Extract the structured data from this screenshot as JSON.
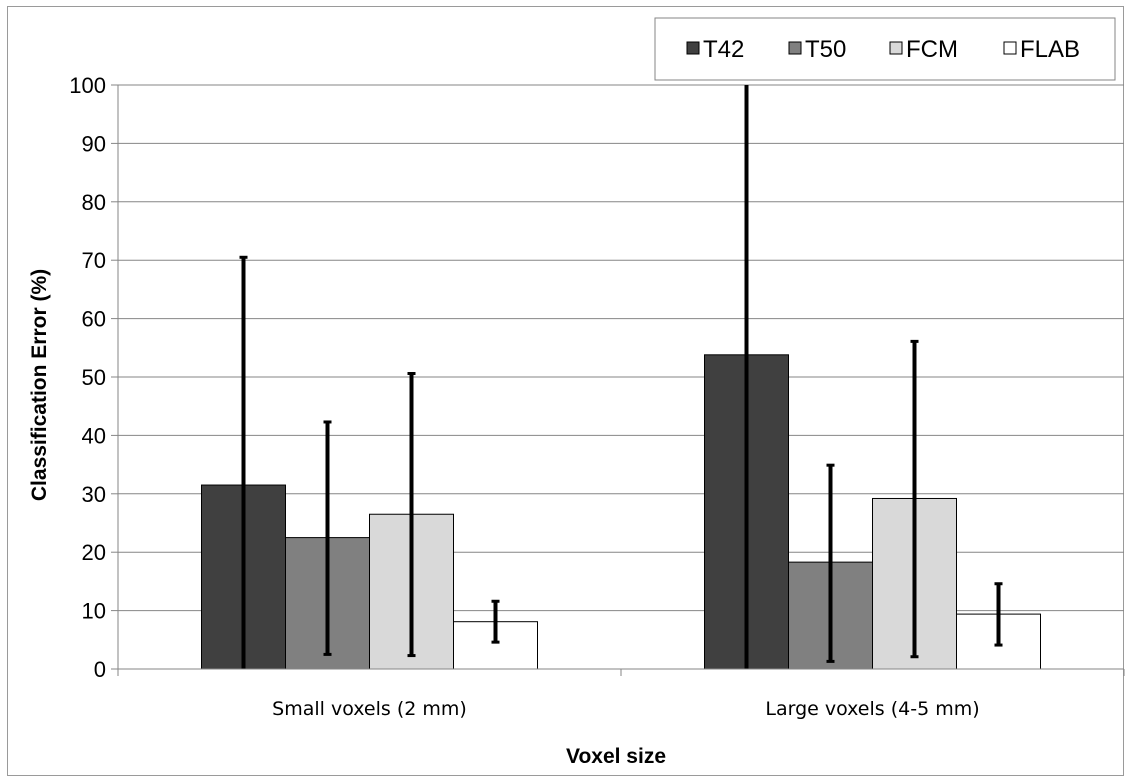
{
  "chart_data": {
    "type": "bar",
    "categories": [
      "Small voxels (2 mm)",
      "Large voxels (4-5 mm)"
    ],
    "series": [
      {
        "name": "T42",
        "values": [
          31.5,
          53.8
        ],
        "error_low": [
          0,
          0
        ],
        "error_high": [
          70.5,
          100
        ],
        "color": "#404040"
      },
      {
        "name": "T50",
        "values": [
          22.5,
          18.3
        ],
        "error_low": [
          2.5,
          1.3
        ],
        "error_high": [
          42.3,
          34.9
        ],
        "color": "#808080"
      },
      {
        "name": "FCM",
        "values": [
          26.5,
          29.2
        ],
        "error_low": [
          2.3,
          2.1
        ],
        "error_high": [
          50.6,
          56.1
        ],
        "color": "#d9d9d9"
      },
      {
        "name": "FLAB",
        "values": [
          8.1,
          9.4
        ],
        "error_low": [
          4.6,
          4.1
        ],
        "error_high": [
          11.6,
          14.6
        ],
        "color": "#ffffff"
      }
    ],
    "xlabel": "Voxel size",
    "ylabel": "Classification Error (%)",
    "ylim": [
      0,
      100
    ],
    "yticks": [
      "0",
      "10",
      "20",
      "30",
      "40",
      "50",
      "60",
      "70",
      "80",
      "90",
      "100"
    ],
    "grid": true,
    "legend": "top-right"
  }
}
